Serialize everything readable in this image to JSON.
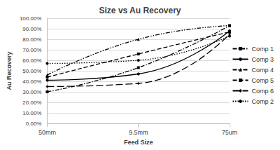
{
  "chart_data": {
    "type": "line",
    "title": "Size vs Au Recovery",
    "x_label": "Feed Size",
    "y_label": "Au Recovery",
    "categories": [
      "50mm",
      "9.5mm",
      "75um"
    ],
    "series": [
      {
        "name": "Comp 1",
        "color": "#000000",
        "line_style": "dashdot",
        "marker": "square",
        "values": [
          30,
          53,
          93
        ]
      },
      {
        "name": "Comp 3",
        "color": "#000000",
        "line_style": "solid",
        "marker": "circle",
        "values": [
          41,
          47,
          88
        ]
      },
      {
        "name": "Comp 4",
        "color": "#000000",
        "line_style": "dashdotdot",
        "marker": "triangle",
        "values": [
          46,
          80,
          93
        ]
      },
      {
        "name": "Comp 5",
        "color": "#000000",
        "line_style": "dashed",
        "marker": "square",
        "values": [
          44,
          66,
          87
        ]
      },
      {
        "name": "Comp 6",
        "color": "#000000",
        "line_style": "longdash",
        "marker": "diamond",
        "values": [
          35,
          38,
          85
        ]
      },
      {
        "name": "Comp 2",
        "color": "#000000",
        "line_style": "dotted",
        "marker": "circle",
        "values": [
          57,
          60,
          83
        ]
      }
    ],
    "ylim": [
      0,
      100
    ],
    "yticks": [
      {
        "value": 0,
        "label": "0.00%"
      },
      {
        "value": 10,
        "label": "10.00%"
      },
      {
        "value": 20,
        "label": "20.00%"
      },
      {
        "value": 30,
        "label": "30.00%"
      },
      {
        "value": 40,
        "label": "40.00%"
      },
      {
        "value": 50,
        "label": "50.00%"
      },
      {
        "value": 60,
        "label": "60.00%"
      },
      {
        "value": 70,
        "label": "70.00%"
      },
      {
        "value": 80,
        "label": "80.00%"
      },
      {
        "value": 90,
        "label": "90.00%"
      },
      {
        "value": 100,
        "label": "100.00%"
      }
    ],
    "grid": true,
    "legend": "right"
  }
}
